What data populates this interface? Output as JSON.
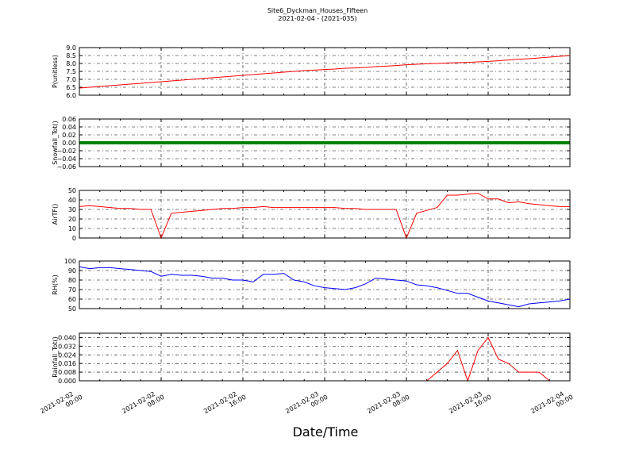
{
  "chart_data": {
    "type": "line",
    "title": "Site6_Dyckman_Houses_Fifteen",
    "subtitle": "2021-02-04 - (2021-035)",
    "xlabel": "Date/Time",
    "grid": true,
    "x": [
      "2021-02-02 00:00",
      "2021-02-02 01:00",
      "2021-02-02 02:00",
      "2021-02-02 03:00",
      "2021-02-02 04:00",
      "2021-02-02 05:00",
      "2021-02-02 06:00",
      "2021-02-02 07:00",
      "2021-02-02 08:00",
      "2021-02-02 09:00",
      "2021-02-02 10:00",
      "2021-02-02 11:00",
      "2021-02-02 12:00",
      "2021-02-02 13:00",
      "2021-02-02 14:00",
      "2021-02-02 15:00",
      "2021-02-02 16:00",
      "2021-02-02 17:00",
      "2021-02-02 18:00",
      "2021-02-02 19:00",
      "2021-02-02 20:00",
      "2021-02-02 21:00",
      "2021-02-02 22:00",
      "2021-02-02 23:00",
      "2021-02-03 00:00",
      "2021-02-03 01:00",
      "2021-02-03 02:00",
      "2021-02-03 03:00",
      "2021-02-03 04:00",
      "2021-02-03 05:00",
      "2021-02-03 06:00",
      "2021-02-03 07:00",
      "2021-02-03 08:00",
      "2021-02-03 09:00",
      "2021-02-03 10:00",
      "2021-02-03 11:00",
      "2021-02-03 12:00",
      "2021-02-03 13:00",
      "2021-02-03 14:00",
      "2021-02-03 15:00",
      "2021-02-03 16:00",
      "2021-02-03 17:00",
      "2021-02-03 18:00",
      "2021-02-03 19:00",
      "2021-02-03 20:00",
      "2021-02-03 21:00",
      "2021-02-03 22:00",
      "2021-02-03 23:00",
      "2021-02-04 00:00"
    ],
    "xlim": [
      "2021-02-02 00:00",
      "2021-02-04 00:00"
    ],
    "xticks": [
      "2021-02-02 00:00",
      "2021-02-02 08:00",
      "2021-02-02 16:00",
      "2021-02-03 00:00",
      "2021-02-03 08:00",
      "2021-02-03 16:00",
      "2021-02-04 00:00"
    ],
    "panels": [
      {
        "ylabel": "P(unitless)",
        "ylim": [
          6,
          9
        ],
        "yticks": [
          {
            "value": 6,
            "label": "6.0"
          },
          6.5,
          {
            "value": 7,
            "label": "7.0"
          },
          7.5,
          {
            "value": 8,
            "label": "8.0"
          },
          8.5,
          {
            "value": 9,
            "label": "9.0"
          }
        ],
        "series": [
          {
            "name": "P",
            "color": "#ff0000",
            "values": [
              6.45,
              6.5,
              6.55,
              6.6,
              6.65,
              6.7,
              6.75,
              6.8,
              6.85,
              6.9,
              6.95,
              7.0,
              7.05,
              7.1,
              7.15,
              7.2,
              7.25,
              7.3,
              7.35,
              7.4,
              7.45,
              7.5,
              7.55,
              7.58,
              7.62,
              7.65,
              7.7,
              7.72,
              7.75,
              7.8,
              7.83,
              7.87,
              7.92,
              7.95,
              7.98,
              8.0,
              8.03,
              8.05,
              8.07,
              8.1,
              8.13,
              8.17,
              8.22,
              8.27,
              8.3,
              8.35,
              8.4,
              8.45,
              8.5
            ]
          }
        ]
      },
      {
        "ylabel": "Snowfall_Tot()",
        "ylim": [
          -0.06,
          0.06
        ],
        "yticks": [
          {
            "value": -0.06,
            "label": "−0.06"
          },
          {
            "value": -0.04,
            "label": "−0.04"
          },
          {
            "value": -0.02,
            "label": "−0.02"
          },
          {
            "value": 0,
            "label": "0.00"
          },
          0.02,
          0.04,
          0.06
        ],
        "series": [
          {
            "name": "Snowfall_Tot",
            "color": "#008000",
            "values": [
              0,
              0,
              0,
              0,
              0,
              0,
              0,
              0,
              0,
              0,
              0,
              0,
              0,
              0,
              0,
              0,
              0,
              0,
              0,
              0,
              0,
              0,
              0,
              0,
              0,
              0,
              0,
              0,
              0,
              0,
              0,
              0,
              0,
              0,
              0,
              0,
              0,
              0,
              0,
              0,
              0,
              0,
              0,
              0,
              0,
              0,
              0,
              0,
              0
            ]
          }
        ]
      },
      {
        "ylabel": "AirTF()",
        "ylim": [
          0,
          50
        ],
        "yticks": [
          0,
          10,
          20,
          30,
          40,
          50
        ],
        "series": [
          {
            "name": "AirTF",
            "color": "#ff0000",
            "values": [
              33,
              34,
              33,
              32,
              31,
              31,
              30,
              30,
              0,
              26,
              27,
              28,
              29,
              30,
              31,
              31,
              32,
              32,
              33,
              32,
              32,
              32,
              32,
              32,
              32,
              32,
              31,
              31,
              30,
              30,
              30,
              30,
              0,
              26,
              29,
              32,
              45,
              45,
              46,
              47,
              41,
              41,
              37,
              38,
              36,
              35,
              34,
              33,
              33
            ]
          }
        ]
      },
      {
        "ylabel": "RH(%)",
        "ylim": [
          50,
          100
        ],
        "yticks": [
          50,
          60,
          70,
          80,
          90,
          100
        ],
        "series": [
          {
            "name": "RH",
            "color": "#0000ff",
            "values": [
              94,
              92,
              93,
              93,
              92,
              91,
              90,
              89,
              84,
              86,
              85,
              85,
              84,
              82,
              82,
              80,
              80,
              78,
              86,
              86,
              87,
              80,
              78,
              74,
              72,
              71,
              70,
              72,
              76,
              82,
              81,
              80,
              79,
              75,
              74,
              72,
              69,
              66,
              66,
              62,
              58,
              56,
              54,
              52,
              55,
              56,
              57,
              58,
              60
            ]
          }
        ]
      },
      {
        "ylabel": "Rainfall_Tot()",
        "ylim": [
          0,
          0.044
        ],
        "yticks": [
          {
            "value": 0,
            "label": "0.000"
          },
          {
            "value": 0.008,
            "label": "0.008"
          },
          {
            "value": 0.016,
            "label": "0.016"
          },
          {
            "value": 0.024,
            "label": "0.024"
          },
          {
            "value": 0.032,
            "label": "0.032"
          },
          {
            "value": 0.04,
            "label": "0.040"
          }
        ],
        "series": [
          {
            "name": "Rainfall_Tot",
            "color": "#ff0000",
            "values": [
              0,
              0,
              0,
              0,
              0,
              0,
              0,
              0,
              0,
              0,
              0,
              0,
              0,
              0,
              0,
              0,
              0,
              0,
              0,
              0,
              0,
              0,
              0,
              0,
              0,
              0,
              0,
              0,
              0,
              0,
              0,
              0,
              0,
              0,
              0,
              0.008,
              0.016,
              0.028,
              0,
              0.028,
              0.04,
              0.02,
              0.016,
              0.008,
              0.008,
              0.008,
              0,
              0,
              0
            ]
          }
        ]
      }
    ]
  }
}
